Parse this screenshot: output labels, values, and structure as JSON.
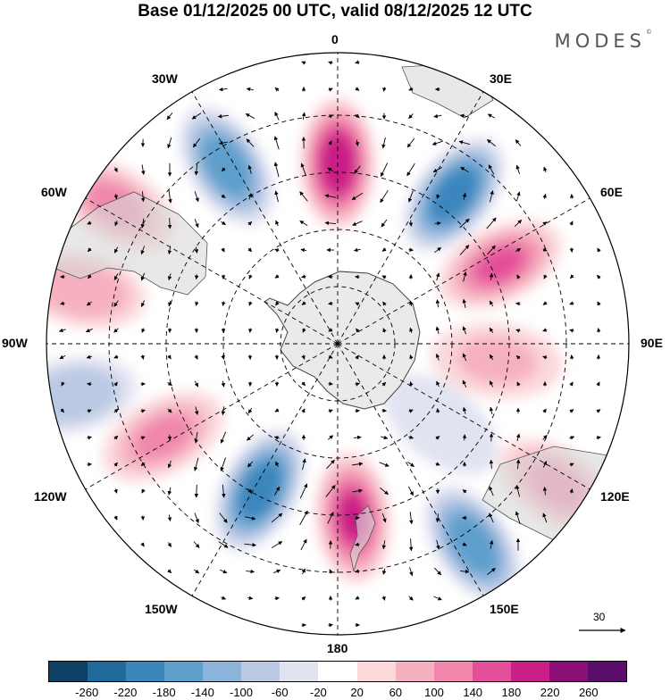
{
  "title": "Base 01/12/2025 00 UTC, valid 08/12/2025 12 UTC",
  "brand": "MODES",
  "brand_mark": "©",
  "longitude_labels": {
    "top": "0",
    "n30e": "30E",
    "n60e": "60E",
    "e90": "90E",
    "s120e": "120E",
    "s150e": "150E",
    "bottom": "180",
    "s150w": "150W",
    "s120w": "120W",
    "w90": "90W",
    "n60w": "60W",
    "n30w": "30W"
  },
  "reference_vector": {
    "value": "30",
    "icon": "arrow-right-icon"
  },
  "colorbar": {
    "colors": [
      "#0f3f63",
      "#1f6a9a",
      "#3a86bd",
      "#5f9fcc",
      "#8db5dc",
      "#bcc9e4",
      "#e2e3f1",
      "#ffffff",
      "#fbd8da",
      "#f6b1c1",
      "#f086ac",
      "#e44f99",
      "#c91f86",
      "#8c0f78",
      "#5b0d6b"
    ],
    "ticks": [
      "-260",
      "-220",
      "-180",
      "-140",
      "-100",
      "-60",
      "-20",
      "20",
      "60",
      "100",
      "140",
      "180",
      "220",
      "260"
    ]
  },
  "anomaly_centers": [
    {
      "sign": "positive",
      "value": 200,
      "bearing": 0,
      "distance": 0.62
    },
    {
      "sign": "negative",
      "value": -200,
      "bearing": 38,
      "distance": 0.65
    },
    {
      "sign": "negative",
      "value": -180,
      "bearing": -32,
      "distance": 0.72
    },
    {
      "sign": "positive",
      "value": 140,
      "bearing": 64,
      "distance": 0.62
    },
    {
      "sign": "positive",
      "value": 100,
      "bearing": -58,
      "distance": 0.9
    },
    {
      "sign": "positive",
      "value": 80,
      "bearing": -78,
      "distance": 0.9
    },
    {
      "sign": "negative",
      "value": -80,
      "bearing": -101,
      "distance": 0.93
    },
    {
      "sign": "positive",
      "value": 100,
      "bearing": -118,
      "distance": 0.68
    },
    {
      "sign": "negative",
      "value": -220,
      "bearing": -152,
      "distance": 0.57
    },
    {
      "sign": "positive",
      "value": 180,
      "bearing": 175,
      "distance": 0.6
    },
    {
      "sign": "negative",
      "value": -180,
      "bearing": 146,
      "distance": 0.83
    },
    {
      "sign": "positive",
      "value": 100,
      "bearing": 123,
      "distance": 0.9
    },
    {
      "sign": "positive",
      "value": 60,
      "bearing": 96,
      "distance": 0.55
    },
    {
      "sign": "negative",
      "value": -60,
      "bearing": 128,
      "distance": 0.45
    }
  ]
}
